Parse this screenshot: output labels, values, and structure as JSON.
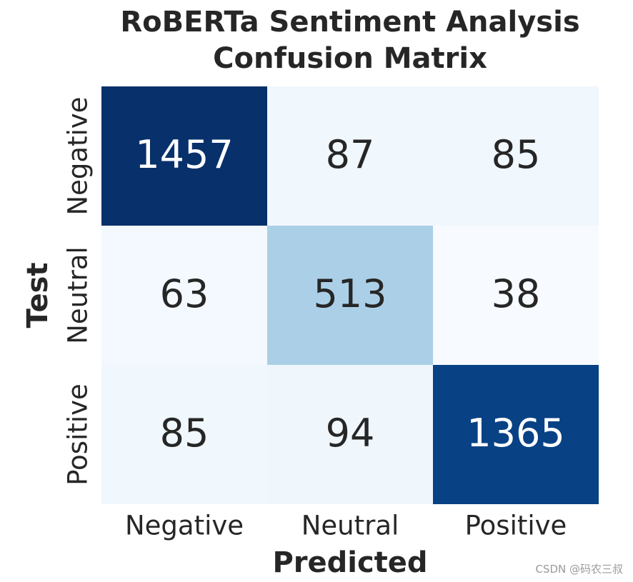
{
  "chart_data": {
    "type": "heatmap",
    "title": [
      "RoBERTa Sentiment Analysis",
      "Confusion Matrix"
    ],
    "xlabel": "Predicted",
    "ylabel": "Test",
    "x_categories": [
      "Negative",
      "Neutral",
      "Positive"
    ],
    "y_categories": [
      "Negative",
      "Neutral",
      "Positive"
    ],
    "values": [
      [
        1457,
        87,
        85
      ],
      [
        63,
        513,
        38
      ],
      [
        85,
        94,
        1365
      ]
    ],
    "colormap": "Blues",
    "colorbar": false,
    "annotations": true
  },
  "watermark": "CSDN @码农三叔",
  "colors": {
    "text_dark": "#262626",
    "text_light": "#ffffff",
    "cmap_low": "#f7fbff",
    "cmap_high": "#08306b"
  }
}
